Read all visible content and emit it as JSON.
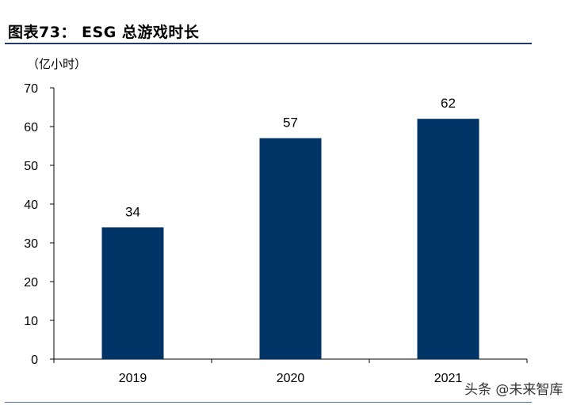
{
  "header": {
    "title": "图表73：  ESG 总游戏时长"
  },
  "watermark": "头条 @未来智库",
  "chart_data": {
    "type": "bar",
    "title": "",
    "unit_label": "（亿小时）",
    "xlabel": "",
    "ylabel": "",
    "categories": [
      "2019",
      "2020",
      "2021"
    ],
    "values": [
      34,
      57,
      62
    ],
    "ylim": [
      0,
      70
    ],
    "yticks": [
      0,
      10,
      20,
      30,
      40,
      50,
      60,
      70
    ],
    "bar_color": "#003366",
    "grid": false,
    "legend": "none"
  }
}
